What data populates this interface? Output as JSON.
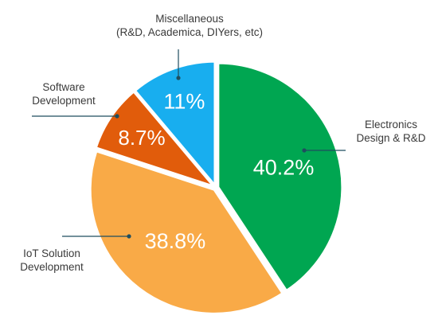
{
  "chart_data": {
    "type": "pie",
    "slices": [
      {
        "label": "Electronics\nDesign & R&D",
        "value": 40.2,
        "display": "40.2%",
        "color": "#00A651"
      },
      {
        "label": "IoT Solution\nDevelopment",
        "value": 38.8,
        "display": "38.8%",
        "color": "#F9AA47"
      },
      {
        "label": "Software\nDevelopment",
        "value": 8.7,
        "display": "8.7%",
        "color": "#E15C0B"
      },
      {
        "label": "Miscellaneous\n(R&D, Academica, DIYers, etc)",
        "value": 11,
        "display": "11%",
        "color": "#18AEEF"
      }
    ],
    "leader_line_color": "#1f4e5f",
    "start": "12 o'clock",
    "direction": "clockwise"
  }
}
